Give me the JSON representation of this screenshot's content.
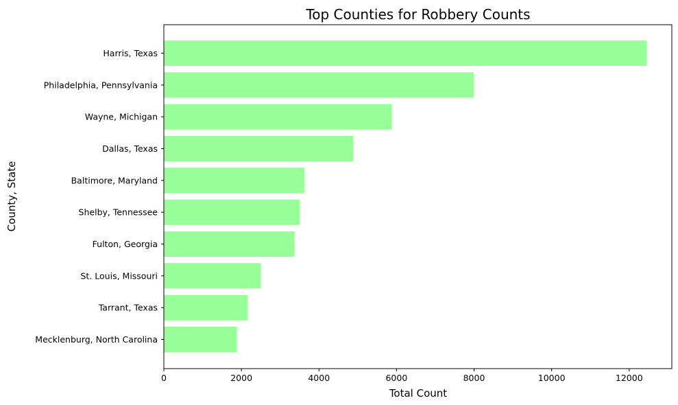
{
  "chart_data": {
    "type": "bar",
    "orientation": "horizontal",
    "title": "Top Counties for Robbery Counts",
    "xlabel": "Total Count",
    "ylabel": "County, State",
    "bar_color": "#98FF98",
    "xlim": [
      0,
      13100
    ],
    "xticks": [
      0,
      2000,
      4000,
      6000,
      8000,
      10000,
      12000
    ],
    "grid": false,
    "legend": "none",
    "categories": [
      "Harris, Texas",
      "Philadelphia, Pennsylvania",
      "Wayne, Michigan",
      "Dallas, Texas",
      "Baltimore, Maryland",
      "Shelby, Tennessee",
      "Fulton, Georgia",
      "St. Louis, Missouri",
      "Tarrant, Texas",
      "Mecklenburg, North Carolina"
    ],
    "values": [
      12450,
      7990,
      5880,
      4880,
      3630,
      3500,
      3370,
      2500,
      2160,
      1880
    ]
  }
}
